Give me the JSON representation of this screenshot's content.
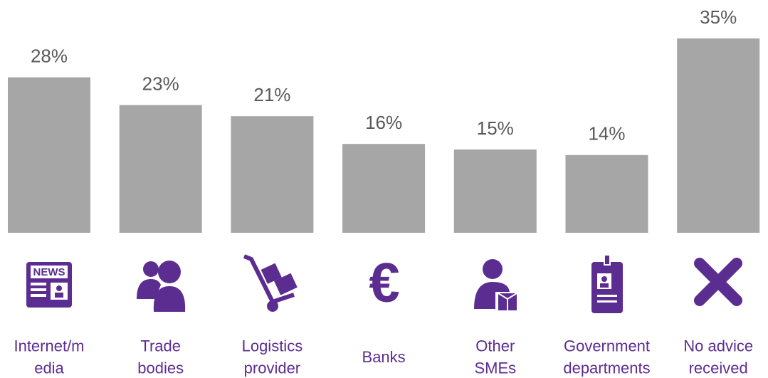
{
  "chart_data": {
    "type": "bar",
    "categories": [
      "Internet/m\nedia",
      "Trade\nbodies",
      "Logistics\nprovider",
      "Banks",
      "Other\nSMEs",
      "Government\ndepartments",
      "No advice\nreceived"
    ],
    "values": [
      28,
      23,
      21,
      16,
      15,
      14,
      35
    ],
    "value_labels": [
      "28%",
      "23%",
      "21%",
      "16%",
      "15%",
      "14%",
      "35%"
    ],
    "color": "#a6a6a6",
    "ylim": [
      0,
      35
    ]
  }
}
